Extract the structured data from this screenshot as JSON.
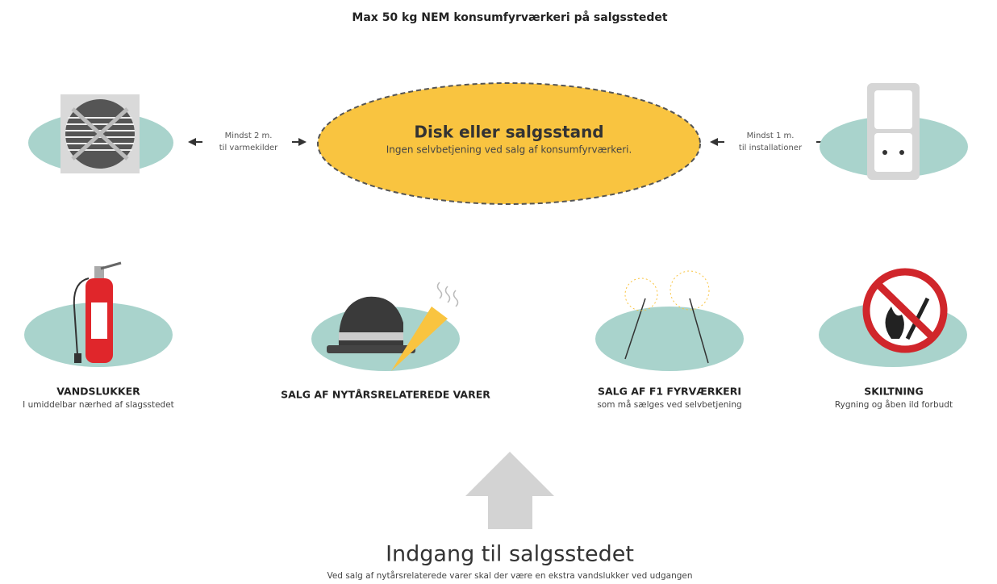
{
  "title": "Max 50 kg NEM konsumfyrværkeri på salgsstedet",
  "counter": {
    "title": "Disk eller salgsstand",
    "subtitle": "Ingen selvbetjening ved salg af konsumfyrværkeri."
  },
  "left_distance": {
    "line1": "Mindst 2 m.",
    "line2": "til varmekilder"
  },
  "right_distance": {
    "line1": "Mindst 1 m.",
    "line2": "til installationer"
  },
  "items": [
    {
      "label": "VANDSLUKKER",
      "subtitle": "I umiddelbar nærhed af slagsstedet"
    },
    {
      "label": "SALG AF NYTÅRSRELATEREDE VARER"
    },
    {
      "label": "SALG AF F1 FYRVÆRKERI",
      "subtitle": "som må sælges ved selvbetjening"
    },
    {
      "label": "SKILTNING",
      "subtitle": "Rygning og åben ild forbudt"
    }
  ],
  "entrance": {
    "title": "Indgang til salgsstedet",
    "subtitle": "Ved salg af nytårsrelaterede varer skal der være en ekstra vandslukker ved udgangen"
  }
}
